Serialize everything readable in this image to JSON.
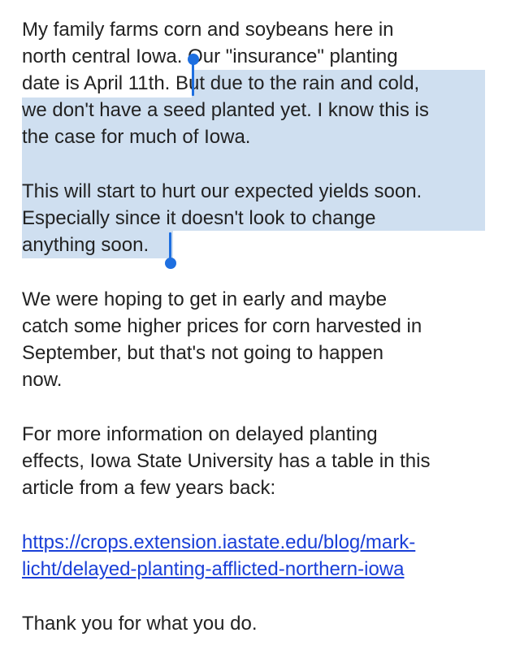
{
  "post": {
    "p1": {
      "l1": "My family farms corn and soybeans here in",
      "l2": "north central Iowa. Our \"insurance\" planting",
      "l3a": "date is April 11th. ",
      "l3b": "But due to the rain and cold,",
      "l4": "we don't have a seed planted yet. I know this is",
      "l5": "the case for much of Iowa."
    },
    "p2": {
      "l1": "This will start to hurt our expected yields soon.",
      "l2": "Especially since it doesn't look to change",
      "l3": "anything soon."
    },
    "p3": {
      "l1": "We were hoping to get in early and maybe",
      "l2": "catch some higher prices for corn harvested in",
      "l3": "September, but that's not going to happen",
      "l4": "now."
    },
    "p4": {
      "l1": "For more information on delayed planting",
      "l2": "effects, Iowa State University has a table in this",
      "l3": "article from a few years back:"
    },
    "link": {
      "l1": "https://crops.extension.iastate.edu/blog/mark-",
      "l2": "licht/delayed-planting-afflicted-northern-iowa"
    },
    "closing": "Thank you for what you do."
  },
  "colors": {
    "text": "#222222",
    "selection": "#cfdff0",
    "handle": "#1e6fe0",
    "link": "#1a3fd8"
  }
}
